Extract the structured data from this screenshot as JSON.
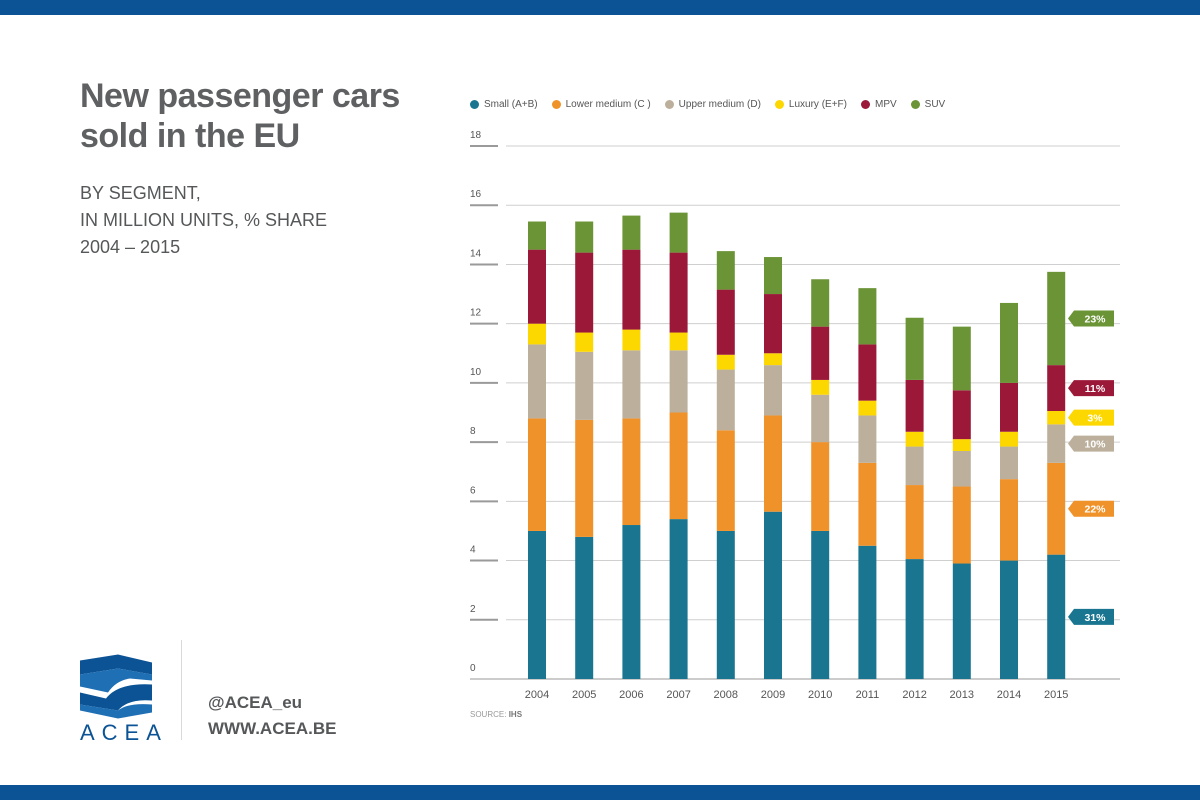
{
  "header": {
    "title_line1": "New passenger cars",
    "title_line2": "sold in the EU",
    "subtitle_line1": "BY SEGMENT,",
    "subtitle_line2": "IN MILLION UNITS, % SHARE",
    "subtitle_line3": "2004 – 2015"
  },
  "footer": {
    "logo_text": "ACEA",
    "twitter": "@ACEA_eu",
    "website": "WWW.ACEA.BE",
    "source_label": "SOURCE:",
    "source_value": "IHS"
  },
  "colors": {
    "brand": "#0b5394",
    "small": "#1a7690",
    "lower_medium": "#f0922a",
    "upper_medium": "#bcb09c",
    "luxury": "#fcd800",
    "mpv": "#9b1838",
    "suv": "#6b9437"
  },
  "chart_data": {
    "type": "bar",
    "stacked": true,
    "categories": [
      "2004",
      "2005",
      "2006",
      "2007",
      "2008",
      "2009",
      "2010",
      "2011",
      "2012",
      "2013",
      "2014",
      "2015"
    ],
    "ylim": [
      0,
      18
    ],
    "yticks": [
      "0",
      "2",
      "4",
      "6",
      "8",
      "10",
      "12",
      "14",
      "16",
      "18"
    ],
    "grid": true,
    "legend_position": "top",
    "series": [
      {
        "name": "Small (A+B)",
        "key": "small",
        "color": "#1a7690",
        "values": [
          5.0,
          4.8,
          5.2,
          5.4,
          5.0,
          5.65,
          5.0,
          4.5,
          4.05,
          3.9,
          4.0,
          4.2
        ],
        "end_label": "31%"
      },
      {
        "name": "Lower medium (C )",
        "key": "lower_medium",
        "color": "#f0922a",
        "values": [
          3.8,
          3.95,
          3.6,
          3.6,
          3.4,
          3.25,
          3.0,
          2.8,
          2.5,
          2.6,
          2.75,
          3.1
        ],
        "end_label": "22%"
      },
      {
        "name": "Upper medium (D)",
        "key": "upper_medium",
        "color": "#bcb09c",
        "values": [
          2.5,
          2.3,
          2.3,
          2.1,
          2.05,
          1.7,
          1.6,
          1.6,
          1.3,
          1.2,
          1.1,
          1.3
        ],
        "end_label": "10%"
      },
      {
        "name": "Luxury (E+F)",
        "key": "luxury",
        "color": "#fcd800",
        "values": [
          0.7,
          0.65,
          0.7,
          0.6,
          0.5,
          0.4,
          0.5,
          0.5,
          0.5,
          0.4,
          0.5,
          0.45
        ],
        "end_label": "3%"
      },
      {
        "name": "MPV",
        "key": "mpv",
        "color": "#9b1838",
        "values": [
          2.5,
          2.7,
          2.7,
          2.7,
          2.2,
          2.0,
          1.8,
          1.9,
          1.75,
          1.65,
          1.65,
          1.55
        ],
        "end_label": "11%"
      },
      {
        "name": "SUV",
        "key": "suv",
        "color": "#6b9437",
        "values": [
          0.95,
          1.05,
          1.15,
          1.35,
          1.3,
          1.25,
          1.6,
          1.9,
          2.1,
          2.15,
          2.7,
          3.15
        ],
        "end_label": "23%"
      }
    ]
  }
}
